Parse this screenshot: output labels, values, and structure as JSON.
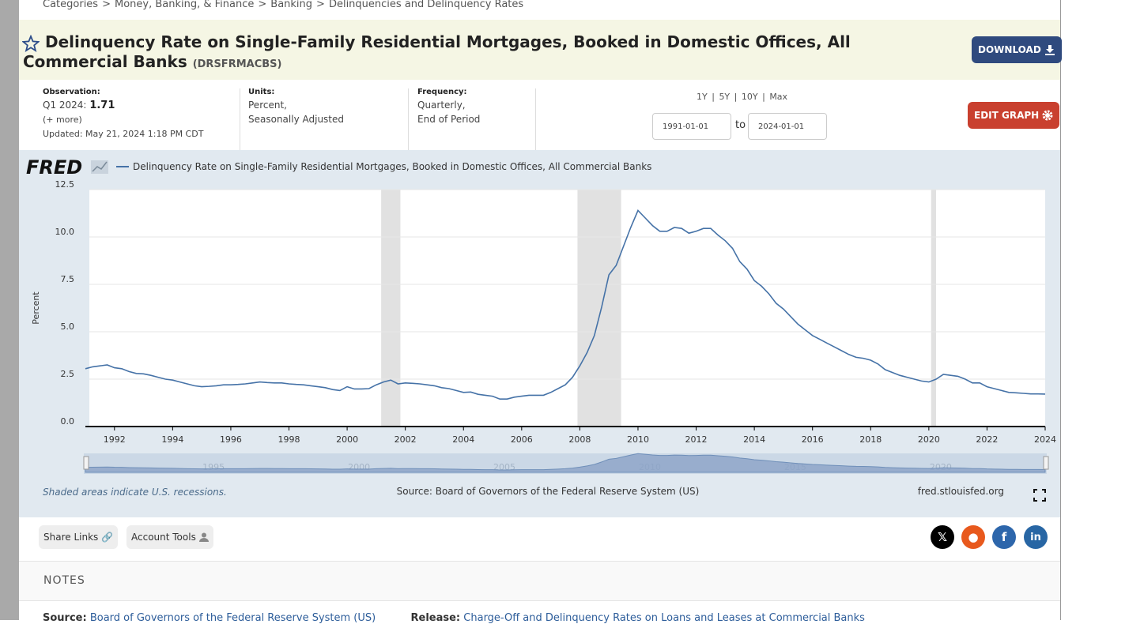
{
  "breadcrumb": [
    "Categories",
    "Money, Banking, & Finance",
    "Banking",
    "Delinquencies and Delinquency Rates"
  ],
  "breadcrumb_separator": ">",
  "header": {
    "title": "Delinquency Rate on Single-Family Residential Mortgages, Booked in Domestic Offices, All Commercial Banks",
    "series_id": "(DRSFRMACBS)",
    "download": "DOWNLOAD"
  },
  "info": {
    "observation_label": "Observation:",
    "observation_period": "Q1 2024:",
    "observation_value": "1.71",
    "more": "(+ more)",
    "updated": "Updated: May 21, 2024 1:18 PM CDT",
    "units_label": "Units:",
    "units_lines": [
      "Percent,",
      "Seasonally Adjusted"
    ],
    "frequency_label": "Frequency:",
    "frequency_lines": [
      "Quarterly,",
      "End of Period"
    ],
    "ranges": [
      "1Y",
      "5Y",
      "10Y",
      "Max"
    ],
    "range_separator": "|",
    "start_date": "1991-01-01",
    "to": "to",
    "end_date": "2024-01-01",
    "edit_graph": "EDIT GRAPH"
  },
  "chart_data": {
    "type": "line",
    "logo": "FRED",
    "y_label": "Percent",
    "x": [
      1991,
      1991.25,
      1991.5,
      1991.75,
      1992,
      1992.25,
      1992.5,
      1992.75,
      1993,
      1993.25,
      1993.5,
      1993.75,
      1994,
      1994.25,
      1994.5,
      1994.75,
      1995,
      1995.25,
      1995.5,
      1995.75,
      1996,
      1996.25,
      1996.5,
      1996.75,
      1997,
      1997.25,
      1997.5,
      1997.75,
      1998,
      1998.25,
      1998.5,
      1998.75,
      1999,
      1999.25,
      1999.5,
      1999.75,
      2000,
      2000.25,
      2000.5,
      2000.75,
      2001,
      2001.25,
      2001.5,
      2001.75,
      2002,
      2002.25,
      2002.5,
      2002.75,
      2003,
      2003.25,
      2003.5,
      2003.75,
      2004,
      2004.25,
      2004.5,
      2004.75,
      2005,
      2005.25,
      2005.5,
      2005.75,
      2006,
      2006.25,
      2006.5,
      2006.75,
      2007,
      2007.25,
      2007.5,
      2007.75,
      2008,
      2008.25,
      2008.5,
      2008.75,
      2009,
      2009.25,
      2009.5,
      2009.75,
      2010,
      2010.25,
      2010.5,
      2010.75,
      2011,
      2011.25,
      2011.5,
      2011.75,
      2012,
      2012.25,
      2012.5,
      2012.75,
      2013,
      2013.25,
      2013.5,
      2013.75,
      2014,
      2014.25,
      2014.5,
      2014.75,
      2015,
      2015.25,
      2015.5,
      2015.75,
      2016,
      2016.25,
      2016.5,
      2016.75,
      2017,
      2017.25,
      2017.5,
      2017.75,
      2018,
      2018.25,
      2018.5,
      2018.75,
      2019,
      2019.25,
      2019.5,
      2019.75,
      2020,
      2020.25,
      2020.5,
      2020.75,
      2021,
      2021.25,
      2021.5,
      2021.75,
      2022,
      2022.25,
      2022.5,
      2022.75,
      2023,
      2023.25,
      2023.5,
      2023.75,
      2024
    ],
    "series": [
      {
        "name": "Delinquency Rate on Single-Family Residential Mortgages, Booked in Domestic Offices, All Commercial Banks",
        "color": "#4572a7",
        "values": [
          3.05,
          3.15,
          3.2,
          3.25,
          3.1,
          3.05,
          2.9,
          2.8,
          2.78,
          2.7,
          2.6,
          2.5,
          2.45,
          2.35,
          2.25,
          2.15,
          2.1,
          2.12,
          2.15,
          2.2,
          2.2,
          2.22,
          2.25,
          2.3,
          2.35,
          2.32,
          2.3,
          2.3,
          2.25,
          2.22,
          2.2,
          2.15,
          2.1,
          2.05,
          1.95,
          1.9,
          2.1,
          1.98,
          1.98,
          2.0,
          2.2,
          2.35,
          2.45,
          2.25,
          2.3,
          2.28,
          2.25,
          2.2,
          2.15,
          2.05,
          2.0,
          1.9,
          1.8,
          1.82,
          1.7,
          1.65,
          1.6,
          1.45,
          1.45,
          1.55,
          1.6,
          1.65,
          1.65,
          1.65,
          1.8,
          2.0,
          2.2,
          2.6,
          3.2,
          3.9,
          4.8,
          6.3,
          8.0,
          8.5,
          9.5,
          10.5,
          11.4,
          11.0,
          10.6,
          10.3,
          10.3,
          10.5,
          10.45,
          10.2,
          10.3,
          10.45,
          10.45,
          10.1,
          9.8,
          9.4,
          8.7,
          8.3,
          7.7,
          7.4,
          7.0,
          6.5,
          6.2,
          5.8,
          5.4,
          5.1,
          4.8,
          4.6,
          4.4,
          4.2,
          4.0,
          3.8,
          3.65,
          3.6,
          3.5,
          3.3,
          3.0,
          2.85,
          2.7,
          2.6,
          2.5,
          2.4,
          2.35,
          2.5,
          2.75,
          2.7,
          2.65,
          2.5,
          2.3,
          2.3,
          2.1,
          2.0,
          1.9,
          1.8,
          1.78,
          1.75,
          1.72,
          1.72,
          1.71
        ]
      }
    ],
    "recessions": [
      [
        2001.17,
        2001.83
      ],
      [
        2007.92,
        2009.42
      ],
      [
        2020.08,
        2020.25
      ]
    ],
    "recession_color": "#e1e1e1",
    "xlim": [
      1991,
      2024
    ],
    "xticks": [
      1992,
      1994,
      1996,
      1998,
      2000,
      2002,
      2004,
      2006,
      2008,
      2010,
      2012,
      2014,
      2016,
      2018,
      2020,
      2022,
      2024
    ],
    "ylim": [
      0,
      12.5
    ],
    "yticks": [
      {
        "value": 0,
        "label": "0.0"
      },
      2.5,
      {
        "value": 5,
        "label": "5.0"
      },
      7.5,
      {
        "value": 10,
        "label": "10.0"
      },
      12.5
    ],
    "grid": true,
    "navigator_ticks": [
      1995,
      2000,
      2005,
      2010,
      2015,
      2020
    ],
    "recession_note": "Shaded areas indicate U.S. recessions.",
    "source": "Source: Board of Governors of the Federal Reserve System (US)",
    "site": "fred.stlouisfed.org"
  },
  "toolbar": {
    "share_links": "Share Links",
    "account_tools": "Account Tools"
  },
  "notes": {
    "heading": "NOTES",
    "source_label": "Source:",
    "source": "Board of Governors of the Federal Reserve System (US)",
    "release_label": "Release:",
    "release": "Charge-Off and Delinquency Rates on Loans and Leases at Commercial Banks"
  }
}
